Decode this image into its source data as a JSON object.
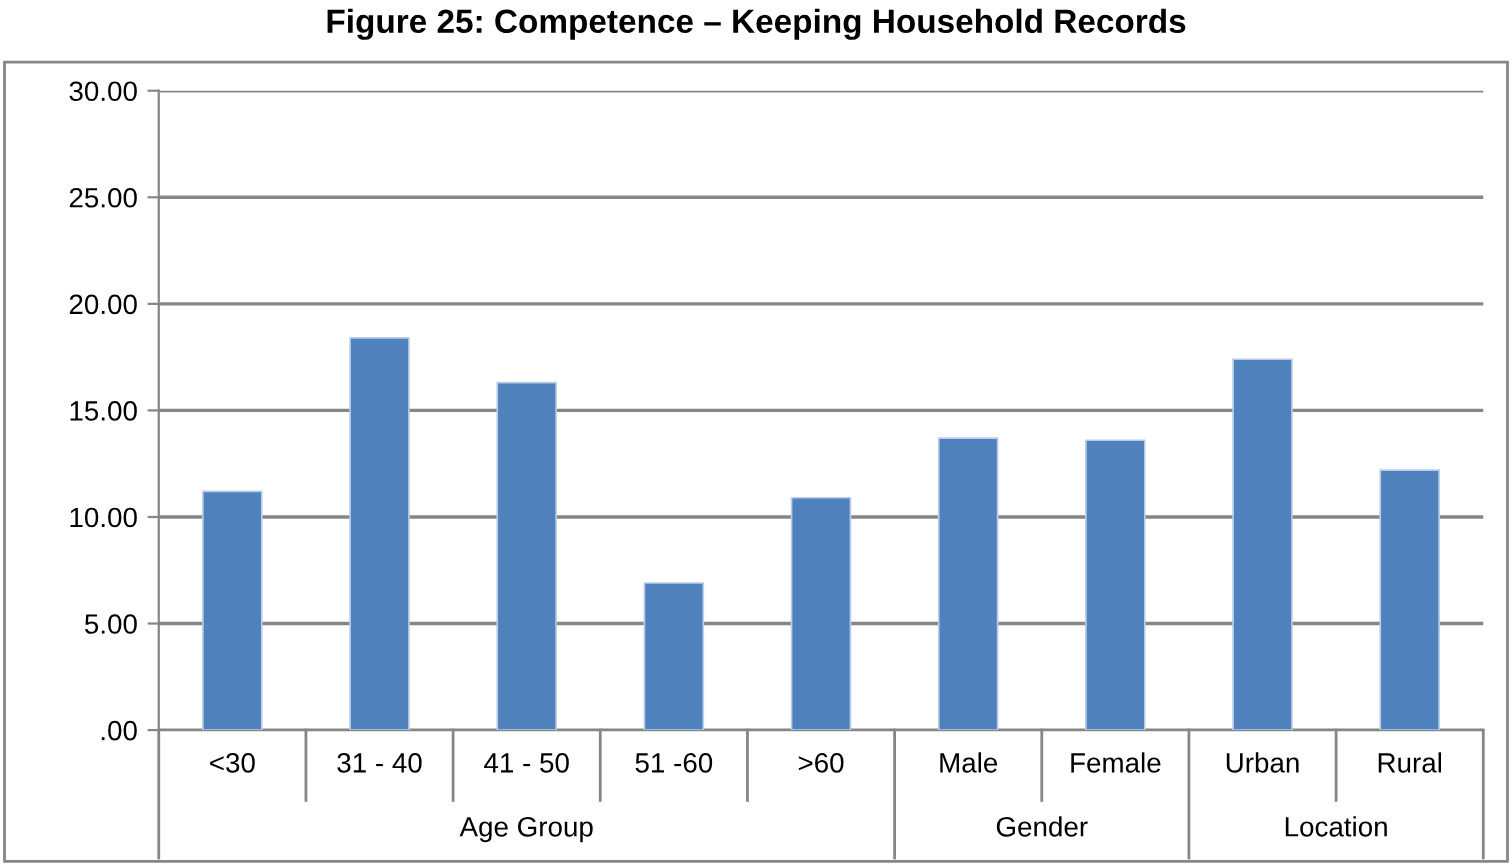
{
  "chart_data": {
    "type": "bar",
    "title": "Figure 25: Competence – Keeping Household Records",
    "categories": [
      "<30",
      "31 - 40",
      "41 - 50",
      "51 -60",
      ">60",
      "Male",
      "Female",
      "Urban",
      "Rural"
    ],
    "values": [
      11.2,
      18.4,
      16.3,
      6.9,
      10.9,
      13.7,
      13.6,
      17.4,
      12.2
    ],
    "color": "#4f81bd",
    "ylim": [
      0,
      30
    ],
    "yticks": [
      {
        "value": 0,
        "label": ".00"
      },
      {
        "value": 5,
        "label": "5.00"
      },
      {
        "value": 10,
        "label": "10.00"
      },
      {
        "value": 15,
        "label": "15.00"
      },
      {
        "value": 20,
        "label": "20.00"
      },
      {
        "value": 25,
        "label": "25.00"
      },
      {
        "value": 30,
        "label": "30.00"
      }
    ],
    "grid": "y",
    "annotations": [
      "Age Group",
      "Gender",
      "Location"
    ]
  }
}
